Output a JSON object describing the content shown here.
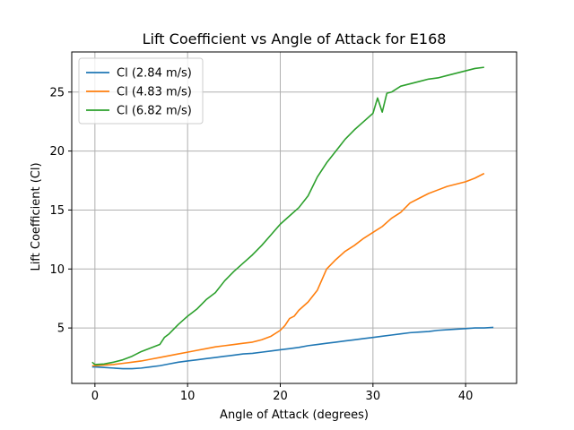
{
  "chart_data": {
    "type": "line",
    "title": "Lift Coefficient vs Angle of Attack for E168",
    "xlabel": "Angle of Attack (degrees)",
    "ylabel": "Lift Coefficient (Cl)",
    "xlim": [
      -2.5,
      45.5
    ],
    "ylim": [
      0.3,
      28.4
    ],
    "xticks": [
      0,
      10,
      20,
      30,
      40
    ],
    "yticks": [
      5,
      10,
      15,
      20,
      25
    ],
    "grid": true,
    "legend_position": "top-left",
    "series": [
      {
        "name": "Cl (2.84 m/s)",
        "color": "#1f77b4",
        "x": [
          -0.3,
          0,
          1,
          2,
          3,
          4,
          5,
          6,
          7,
          8,
          9,
          10,
          11,
          12,
          13,
          14,
          15,
          16,
          17,
          18,
          19,
          20,
          21,
          22,
          23,
          24,
          25,
          26,
          27,
          28,
          29,
          30,
          31,
          32,
          33,
          34,
          35,
          36,
          37,
          38,
          39,
          40,
          41,
          42,
          43
        ],
        "y": [
          1.7,
          1.7,
          1.65,
          1.6,
          1.55,
          1.55,
          1.6,
          1.7,
          1.8,
          1.95,
          2.1,
          2.2,
          2.3,
          2.4,
          2.5,
          2.6,
          2.7,
          2.8,
          2.85,
          2.95,
          3.05,
          3.15,
          3.25,
          3.35,
          3.5,
          3.6,
          3.7,
          3.8,
          3.9,
          4.0,
          4.1,
          4.2,
          4.3,
          4.4,
          4.5,
          4.6,
          4.65,
          4.7,
          4.8,
          4.85,
          4.9,
          4.95,
          5.0,
          5.0,
          5.05
        ]
      },
      {
        "name": "Cl (4.83 m/s)",
        "color": "#ff7f0e",
        "x": [
          -0.3,
          0,
          1,
          2,
          3,
          4,
          5,
          6,
          7,
          8,
          9,
          10,
          11,
          12,
          13,
          14,
          15,
          16,
          17,
          18,
          19,
          20,
          20.5,
          21,
          21.5,
          22,
          23,
          24,
          25,
          26,
          27,
          28,
          29,
          30,
          31,
          32,
          33,
          34,
          35,
          36,
          37,
          38,
          39,
          40,
          41,
          42
        ],
        "y": [
          1.8,
          1.8,
          1.85,
          1.9,
          2.0,
          2.1,
          2.2,
          2.35,
          2.5,
          2.65,
          2.8,
          2.95,
          3.1,
          3.25,
          3.4,
          3.5,
          3.6,
          3.7,
          3.8,
          4.0,
          4.3,
          4.8,
          5.2,
          5.8,
          6.0,
          6.5,
          7.2,
          8.2,
          10.0,
          10.8,
          11.5,
          12.0,
          12.6,
          13.1,
          13.6,
          14.3,
          14.8,
          15.6,
          16.0,
          16.4,
          16.7,
          17.0,
          17.2,
          17.4,
          17.7,
          18.1
        ]
      },
      {
        "name": "Cl (6.82 m/s)",
        "color": "#2ca02c",
        "x": [
          -0.3,
          0,
          1,
          2,
          3,
          4,
          5,
          6,
          7,
          7.5,
          8,
          9,
          10,
          11,
          12,
          13,
          14,
          15,
          16,
          17,
          18,
          19,
          20,
          21,
          22,
          23,
          24,
          25,
          26,
          27,
          28,
          29,
          30,
          30.5,
          31,
          31.5,
          32,
          33,
          34,
          35,
          36,
          37,
          38,
          39,
          40,
          41,
          42
        ],
        "y": [
          2.1,
          1.9,
          1.95,
          2.1,
          2.3,
          2.6,
          3.0,
          3.3,
          3.6,
          4.2,
          4.5,
          5.3,
          6.0,
          6.6,
          7.4,
          8.0,
          9.0,
          9.8,
          10.5,
          11.2,
          12.0,
          12.9,
          13.8,
          14.5,
          15.2,
          16.2,
          17.8,
          19.0,
          20.0,
          21.0,
          21.8,
          22.5,
          23.2,
          24.5,
          23.3,
          24.9,
          25.0,
          25.5,
          25.7,
          25.9,
          26.1,
          26.2,
          26.4,
          26.6,
          26.8,
          27.0,
          27.1
        ]
      }
    ]
  }
}
